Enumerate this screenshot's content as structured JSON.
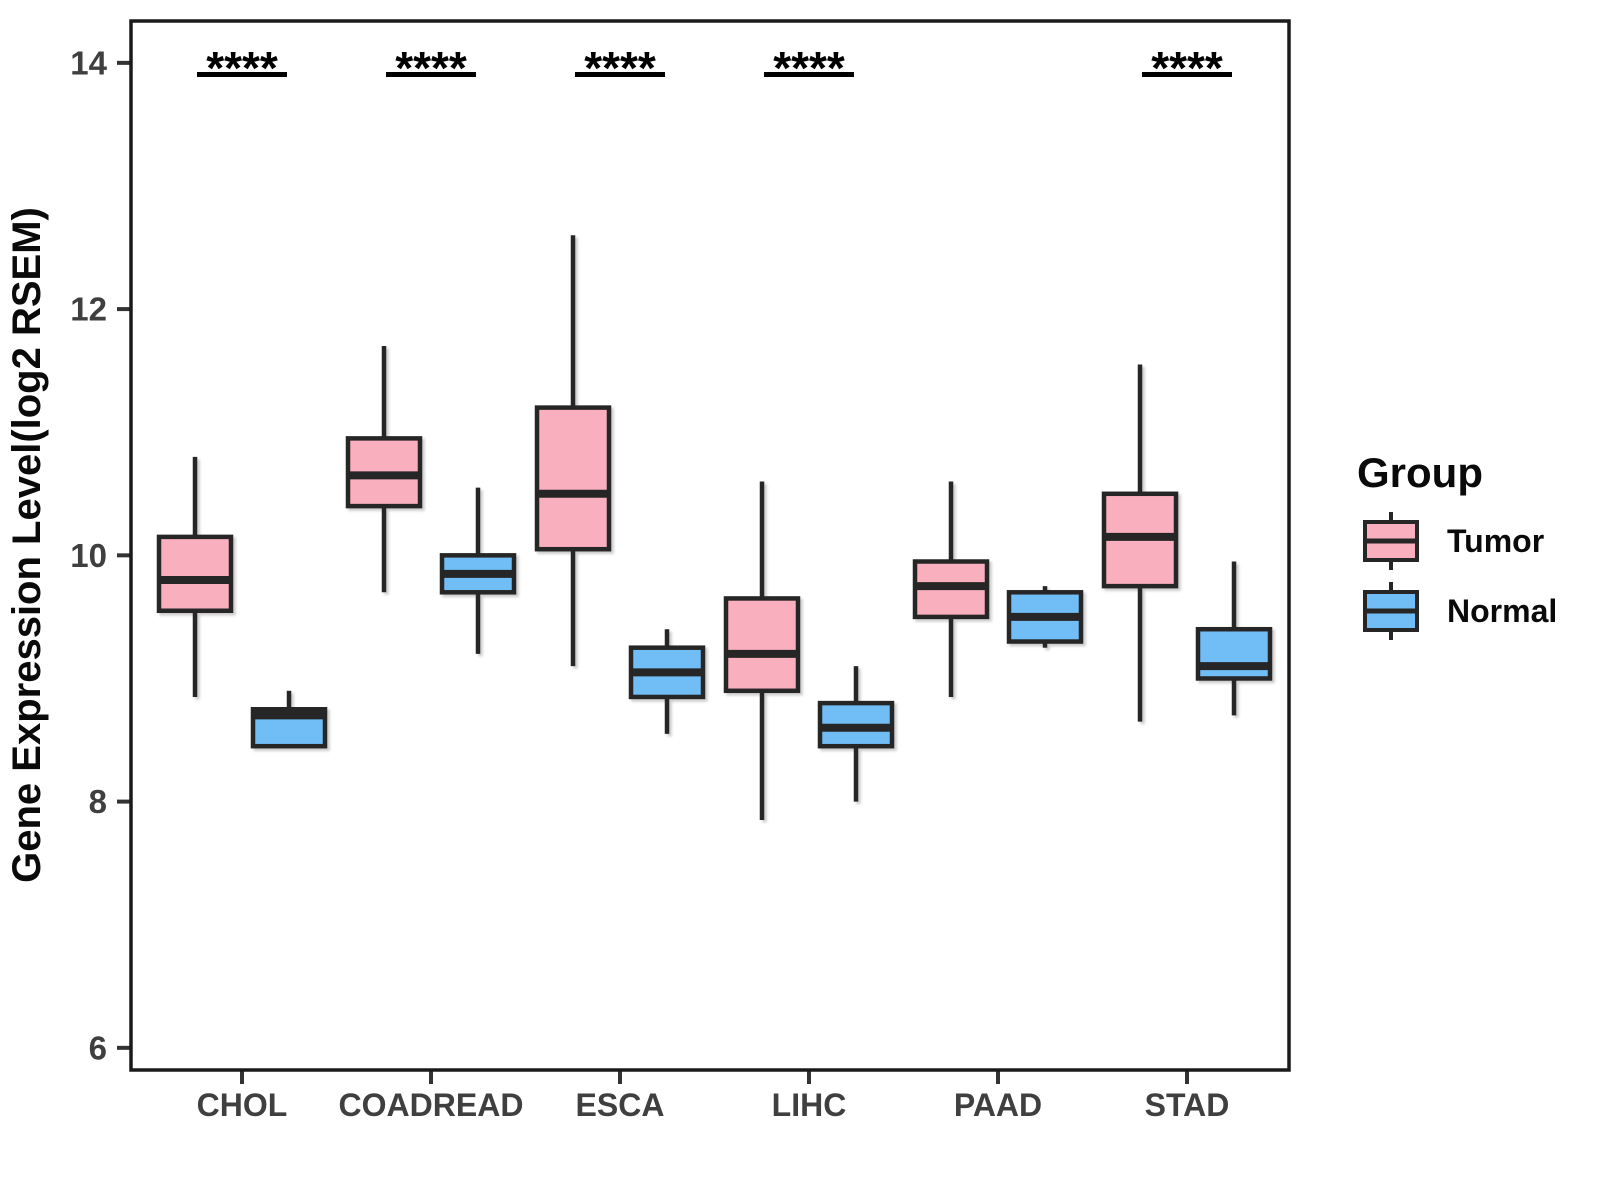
{
  "chart_data": {
    "type": "boxplot",
    "title": "",
    "xlabel": "",
    "ylabel": "Gene Expression Level(log2 RSEM)",
    "categories": [
      "CHOL",
      "COADREAD",
      "ESCA",
      "LIHC",
      "PAAD",
      "STAD"
    ],
    "y_ticks": [
      6,
      8,
      10,
      12,
      14
    ],
    "ylim": [
      5.82,
      14.34
    ],
    "grid": false,
    "legend": {
      "title": "Group",
      "position": "right",
      "entries": [
        {
          "label": "Tumor",
          "color": "#FAAFBF"
        },
        {
          "label": "Normal",
          "color": "#71BDF6"
        }
      ]
    },
    "series": [
      {
        "name": "Tumor",
        "color": "#FAAFBF",
        "boxes": [
          {
            "min": 8.85,
            "q1": 9.55,
            "median": 9.8,
            "q3": 10.15,
            "max": 10.8
          },
          {
            "min": 9.7,
            "q1": 10.4,
            "median": 10.65,
            "q3": 10.95,
            "max": 11.7
          },
          {
            "min": 9.1,
            "q1": 10.05,
            "median": 10.5,
            "q3": 11.2,
            "max": 12.6
          },
          {
            "min": 7.85,
            "q1": 8.9,
            "median": 9.2,
            "q3": 9.65,
            "max": 10.6
          },
          {
            "min": 8.85,
            "q1": 9.5,
            "median": 9.75,
            "q3": 9.95,
            "max": 10.6
          },
          {
            "min": 8.65,
            "q1": 9.75,
            "median": 10.15,
            "q3": 10.5,
            "max": 11.55
          }
        ]
      },
      {
        "name": "Normal",
        "color": "#71BDF6",
        "boxes": [
          {
            "min": 8.45,
            "q1": 8.45,
            "median": 8.7,
            "q3": 8.75,
            "max": 8.9
          },
          {
            "min": 9.2,
            "q1": 9.7,
            "median": 9.85,
            "q3": 10.0,
            "max": 10.55
          },
          {
            "min": 8.55,
            "q1": 8.85,
            "median": 9.05,
            "q3": 9.25,
            "max": 9.4
          },
          {
            "min": 8.0,
            "q1": 8.45,
            "median": 8.6,
            "q3": 8.8,
            "max": 9.1
          },
          {
            "min": 9.25,
            "q1": 9.3,
            "median": 9.5,
            "q3": 9.7,
            "max": 9.75
          },
          {
            "min": 8.7,
            "q1": 9.0,
            "median": 9.1,
            "q3": 9.4,
            "max": 9.95
          }
        ]
      }
    ],
    "significance": [
      "****",
      "****",
      "****",
      "****",
      null,
      "****"
    ]
  },
  "styles": {
    "background": "#FFFFFF",
    "box_border": "#262626",
    "panel_border": "#1A1A1A",
    "axis_text_color": "#3F3F3F",
    "title_text_color": "#0A0A0A",
    "sig_color": "#000000"
  }
}
